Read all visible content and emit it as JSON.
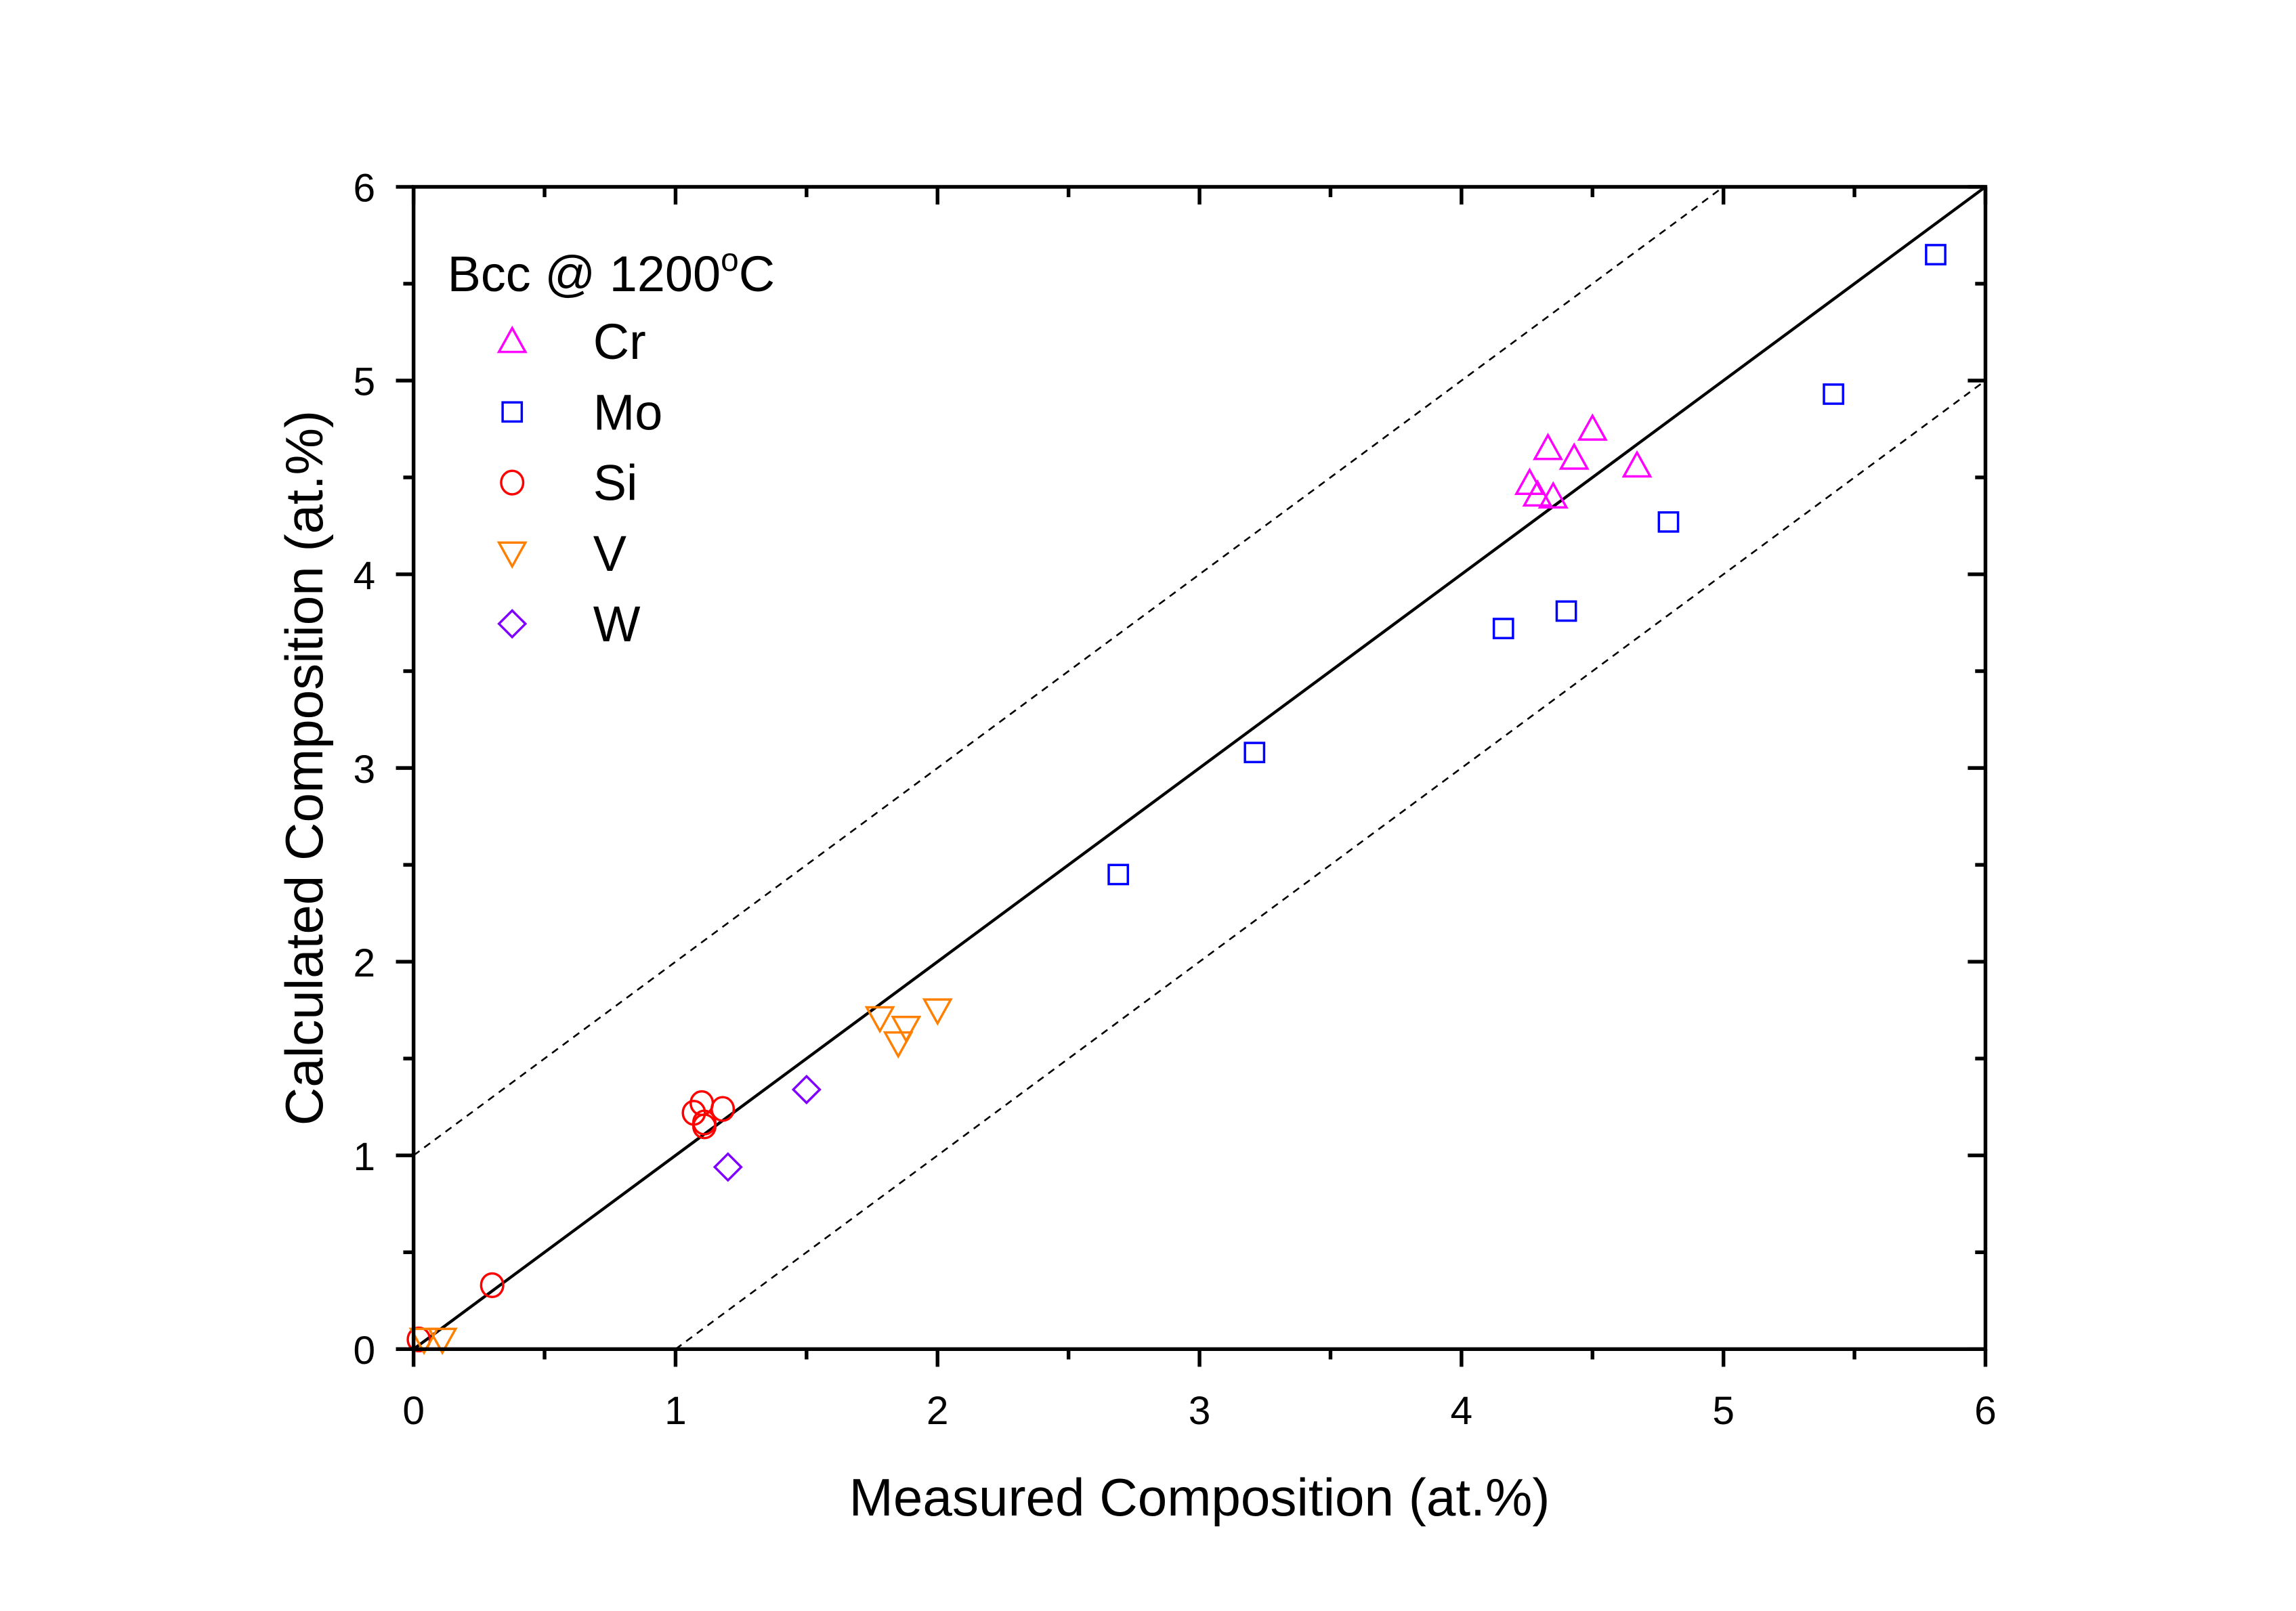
{
  "chart_data": {
    "type": "scatter",
    "title": "",
    "xlabel": "Measured Composition (at.%)",
    "ylabel": "Calculated Composition (at.%)",
    "xlim": [
      0,
      6
    ],
    "ylim": [
      0,
      6
    ],
    "xticks": [
      "0",
      "1",
      "2",
      "3",
      "4",
      "5",
      "6"
    ],
    "yticks": [
      "0",
      "1",
      "2",
      "3",
      "4",
      "5",
      "6"
    ],
    "grid": false,
    "legend": {
      "placement": "top-left",
      "title_main": "Bcc @ 1200",
      "title_sup": "o",
      "title_tail": "C"
    },
    "reference_lines": [
      {
        "name": "y=x",
        "slope": 1,
        "intercept": 0,
        "style": "solid"
      },
      {
        "name": "y=x+1",
        "slope": 1,
        "intercept": 1,
        "style": "dashed"
      },
      {
        "name": "y=x-1",
        "slope": 1,
        "intercept": -1,
        "style": "dashed"
      }
    ],
    "series": [
      {
        "name": "Cr",
        "marker": "triangle-up",
        "color": "#FF00FF",
        "points": [
          [
            4.33,
            4.65
          ],
          [
            4.5,
            4.75
          ],
          [
            4.26,
            4.47
          ],
          [
            4.43,
            4.6
          ],
          [
            4.67,
            4.56
          ],
          [
            4.29,
            4.41
          ],
          [
            4.35,
            4.4
          ]
        ]
      },
      {
        "name": "Mo",
        "marker": "square",
        "color": "#0000FF",
        "points": [
          [
            2.69,
            2.45
          ],
          [
            3.21,
            3.08
          ],
          [
            4.16,
            3.72
          ],
          [
            4.4,
            3.81
          ],
          [
            4.79,
            4.27
          ],
          [
            5.42,
            4.93
          ],
          [
            5.81,
            5.65
          ]
        ]
      },
      {
        "name": "Si",
        "marker": "circle",
        "color": "#FF0000",
        "points": [
          [
            0.02,
            0.05
          ],
          [
            0.3,
            0.33
          ],
          [
            1.07,
            1.22
          ],
          [
            1.1,
            1.27
          ],
          [
            1.18,
            1.24
          ],
          [
            1.11,
            1.17
          ],
          [
            1.11,
            1.15
          ]
        ]
      },
      {
        "name": "V",
        "marker": "triangle-down",
        "color": "#FF8000",
        "points": [
          [
            0.04,
            0.05
          ],
          [
            0.11,
            0.05
          ],
          [
            1.78,
            1.71
          ],
          [
            1.88,
            1.66
          ],
          [
            1.85,
            1.58
          ],
          [
            2.0,
            1.75
          ]
        ]
      },
      {
        "name": "W",
        "marker": "diamond",
        "color": "#8000FF",
        "points": [
          [
            1.2,
            0.94
          ],
          [
            1.5,
            1.34
          ]
        ]
      }
    ]
  }
}
